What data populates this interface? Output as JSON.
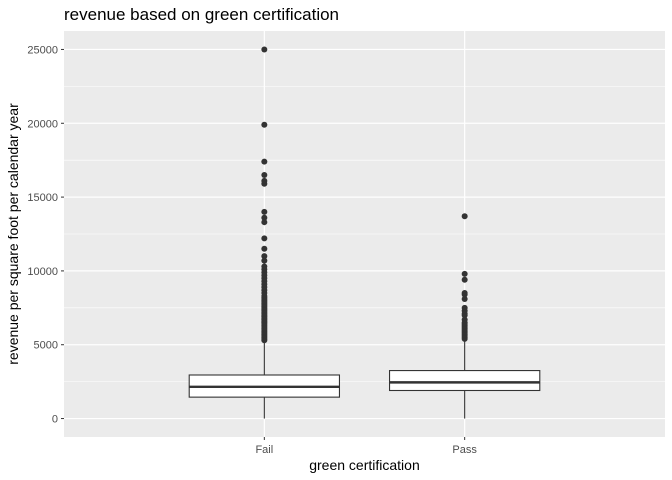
{
  "chart_data": {
    "type": "box",
    "title": "revenue based on green certification",
    "xlabel": "green certification",
    "ylabel": "revenue per square foot per calendar year",
    "categories": [
      "Fail",
      "Pass"
    ],
    "ylim": [
      -1250,
      26250
    ],
    "yticks": [
      0,
      5000,
      10000,
      15000,
      20000,
      25000
    ],
    "yticklabels": [
      "0",
      "5000",
      "10000",
      "15000",
      "20000",
      "25000"
    ],
    "grid": true,
    "legend": "none",
    "colors": {
      "panel": "#ebebeb",
      "grid_major": "#ffffff",
      "box_fill": "#ffffff",
      "box_line": "#333333",
      "outlier": "#333333"
    },
    "boxes": [
      {
        "category": "Fail",
        "whisker_low": 0,
        "q1": 1450,
        "median": 2150,
        "q3": 2950,
        "whisker_high": 5200,
        "outliers": [
          5300,
          5400,
          5500,
          5600,
          5700,
          5800,
          5900,
          6000,
          6100,
          6200,
          6300,
          6400,
          6500,
          6600,
          6700,
          6800,
          6900,
          7000,
          7100,
          7200,
          7300,
          7400,
          7500,
          7600,
          7700,
          7800,
          7900,
          8000,
          8100,
          8200,
          8300,
          8500,
          8700,
          8900,
          9100,
          9300,
          9500,
          9700,
          9900,
          10100,
          10300,
          10700,
          11000,
          11500,
          12200,
          13300,
          13600,
          14000,
          15900,
          16100,
          16500,
          17400,
          19900,
          25000
        ]
      },
      {
        "category": "Pass",
        "whisker_low": 0,
        "q1": 1900,
        "median": 2450,
        "q3": 3250,
        "whisker_high": 5250,
        "outliers": [
          5400,
          5500,
          5600,
          5700,
          5800,
          5900,
          6000,
          6100,
          6200,
          6300,
          6400,
          6500,
          6700,
          7000,
          7100,
          7300,
          7500,
          8100,
          8400,
          8500,
          9400,
          9800,
          13700
        ]
      }
    ]
  }
}
